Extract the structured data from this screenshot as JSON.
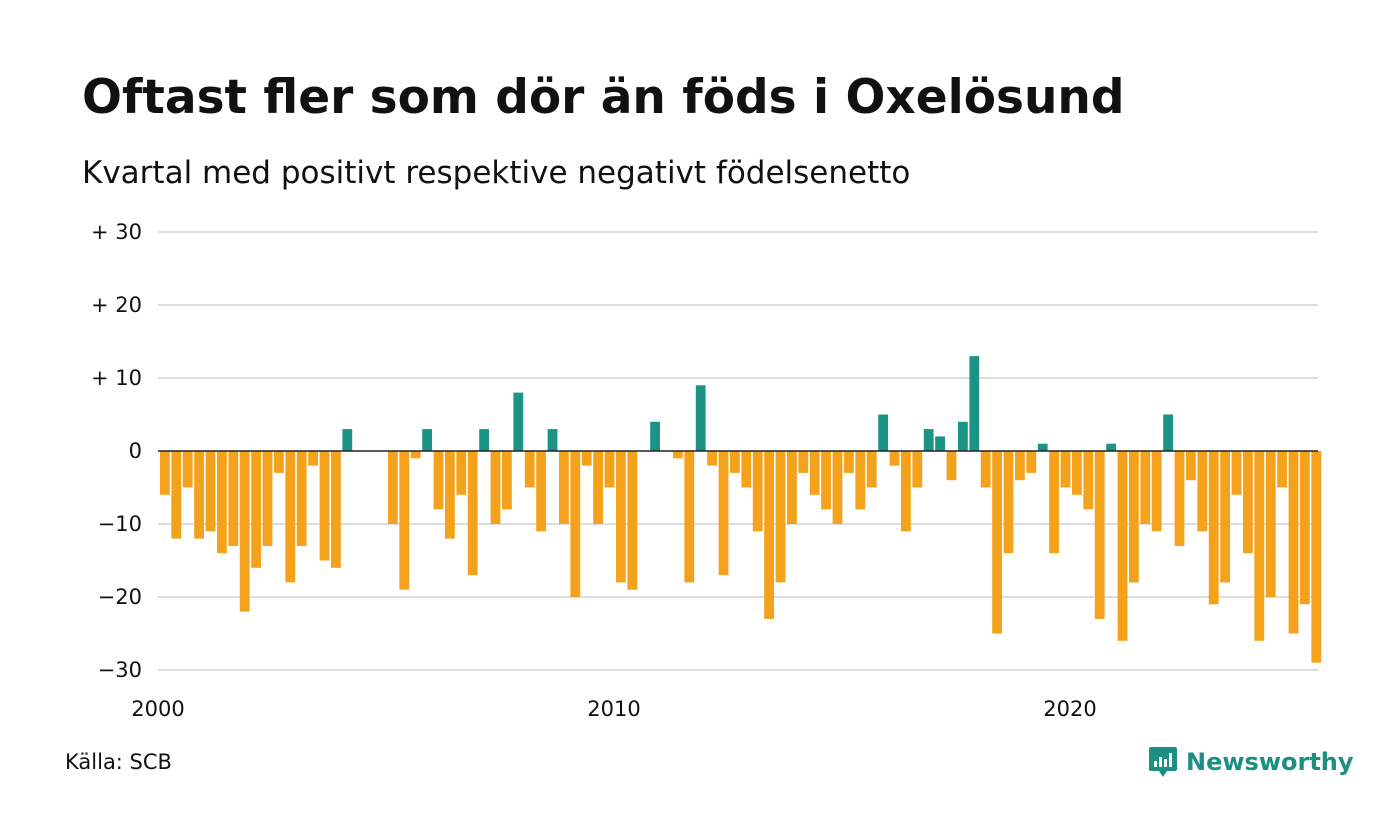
{
  "header": {
    "title": "Oftast fler som dör än föds i Oxelösund",
    "subtitle": "Kvartal med positivt respektive negativt födelsenetto"
  },
  "footer": {
    "source": "Källa: SCB",
    "brand": "Newsworthy",
    "brand_color": "#1b8f82"
  },
  "colors": {
    "positive": "#1b9486",
    "negative": "#f4a11c",
    "grid": "#dddddd",
    "zero_line": "#222222"
  },
  "chart_data": {
    "type": "bar",
    "title": "Oftast fler som dör än föds i Oxelösund",
    "subtitle": "Kvartal med positivt respektive negativt födelsenetto",
    "xlabel": "",
    "ylabel": "",
    "ylim": [
      -30,
      30
    ],
    "yticks": [
      30,
      20,
      10,
      0,
      -10,
      -20,
      -30
    ],
    "ytick_labels": [
      "+ 30",
      "+ 20",
      "+ 10",
      "0",
      "−10",
      "−20",
      "−30"
    ],
    "xticks": [
      2000,
      2010,
      2020
    ],
    "xtick_labels": [
      "2000",
      "2010",
      "2020"
    ],
    "x_start": 2000,
    "x_period": "quarter",
    "grid": true,
    "values": [
      -6,
      -12,
      -5,
      -12,
      -11,
      -14,
      -13,
      -22,
      -16,
      -13,
      -3,
      -18,
      -13,
      -2,
      -15,
      -16,
      3,
      0,
      0,
      0,
      -10,
      -19,
      -1,
      3,
      -8,
      -12,
      -6,
      -17,
      3,
      -10,
      -8,
      8,
      -5,
      -11,
      3,
      -10,
      -20,
      -2,
      -10,
      -5,
      -18,
      -19,
      0,
      4,
      0,
      -1,
      -18,
      9,
      -2,
      -17,
      -3,
      -5,
      -11,
      -23,
      -18,
      -10,
      -3,
      -6,
      -8,
      -10,
      -3,
      -8,
      -5,
      5,
      -2,
      -11,
      -5,
      3,
      2,
      -4,
      4,
      13,
      -5,
      -25,
      -14,
      -4,
      -3,
      1,
      -14,
      -5,
      -6,
      -8,
      -23,
      1,
      -26,
      -18,
      -10,
      -11,
      5,
      -13,
      -4,
      -11,
      -21,
      -18,
      -6,
      -14,
      -26,
      -20,
      -5,
      -25,
      -21,
      -29
    ]
  }
}
